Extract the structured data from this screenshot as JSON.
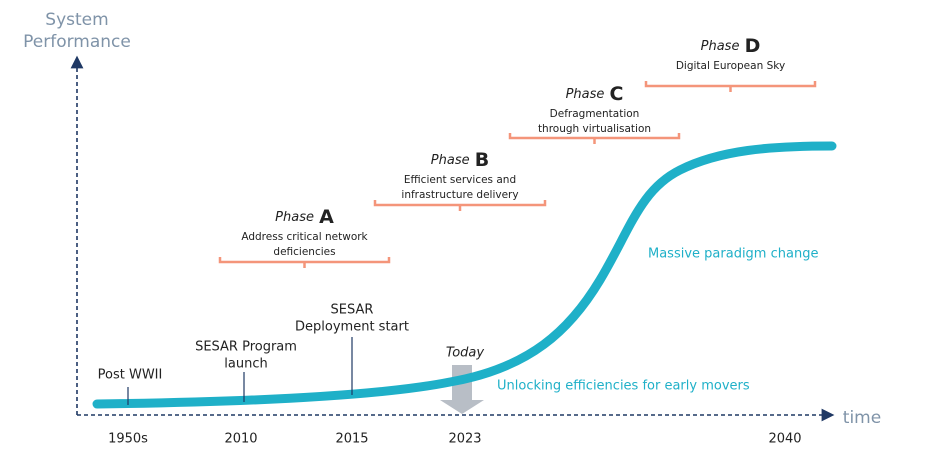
{
  "axis": {
    "y_label": [
      "System",
      "Performance"
    ],
    "x_label": "time"
  },
  "years": [
    "1950s",
    "2010",
    "2015",
    "2023",
    "2040"
  ],
  "milestones": [
    {
      "label": [
        "Post WWII"
      ]
    },
    {
      "label": [
        "SESAR Program",
        "launch"
      ]
    },
    {
      "label": [
        "SESAR",
        "Deployment start"
      ]
    },
    {
      "label": [
        "Today"
      ]
    }
  ],
  "phases": [
    {
      "word": "Phase",
      "letter": "A",
      "description": [
        "Address critical network",
        "deficiencies"
      ]
    },
    {
      "word": "Phase",
      "letter": "B",
      "description": [
        "Efficient services and",
        "infrastructure delivery"
      ]
    },
    {
      "word": "Phase",
      "letter": "C",
      "description": [
        "Defragmentation",
        "through virtualisation"
      ]
    },
    {
      "word": "Phase",
      "letter": "D",
      "description": [
        "Digital European Sky"
      ]
    }
  ],
  "annotations": [
    "Massive paradigm change",
    "Unlocking efficiencies for early movers"
  ]
}
